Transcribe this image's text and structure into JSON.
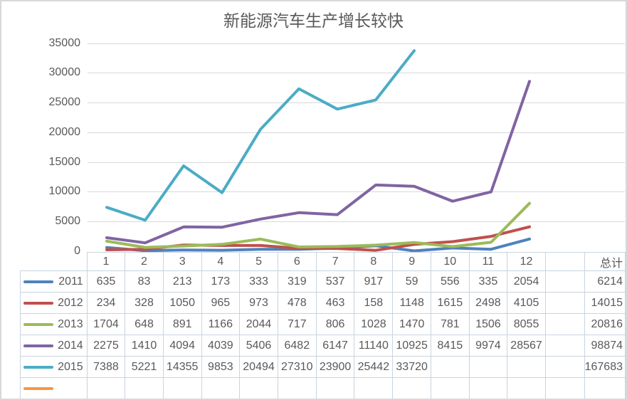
{
  "chart": {
    "title": "新能源汽车生产增长较快"
  },
  "colors": {
    "text": "#595959",
    "grid": "#d9d9d9",
    "table_border": "#c9d4de"
  },
  "table": {
    "total_header": "总计"
  },
  "chart_data": {
    "type": "line",
    "title": "新能源汽车生产增长较快",
    "categories": [
      "1",
      "2",
      "3",
      "4",
      "5",
      "6",
      "7",
      "8",
      "9",
      "10",
      "11",
      "12",
      "",
      "总计"
    ],
    "y_ticks": [
      "0",
      "5000",
      "10000",
      "15000",
      "20000",
      "25000",
      "30000",
      "35000"
    ],
    "ylim": [
      0,
      35000
    ],
    "grid": true,
    "legend_position": "data-table-left",
    "series": [
      {
        "name": "2011",
        "color": "#4F81BD",
        "values": [
          635,
          83,
          213,
          173,
          333,
          319,
          537,
          917,
          59,
          556,
          335,
          2054
        ],
        "total": 6214
      },
      {
        "name": "2012",
        "color": "#C0504D",
        "values": [
          234,
          328,
          1050,
          965,
          973,
          478,
          463,
          158,
          1148,
          1615,
          2498,
          4105
        ],
        "total": 14015
      },
      {
        "name": "2013",
        "color": "#9BBB59",
        "values": [
          1704,
          648,
          891,
          1166,
          2044,
          717,
          806,
          1028,
          1470,
          781,
          1506,
          8055
        ],
        "total": 20816
      },
      {
        "name": "2014",
        "color": "#8064A2",
        "values": [
          2275,
          1410,
          4094,
          4039,
          5406,
          6482,
          6147,
          11140,
          10925,
          8415,
          9974,
          28567
        ],
        "total": 98874
      },
      {
        "name": "2015",
        "color": "#4BACC6",
        "values": [
          7388,
          5221,
          14355,
          9853,
          20494,
          27310,
          23900,
          25442,
          33720
        ],
        "total": 167683
      },
      {
        "name": "",
        "color": "#F79646",
        "values": [],
        "total": null
      }
    ]
  }
}
